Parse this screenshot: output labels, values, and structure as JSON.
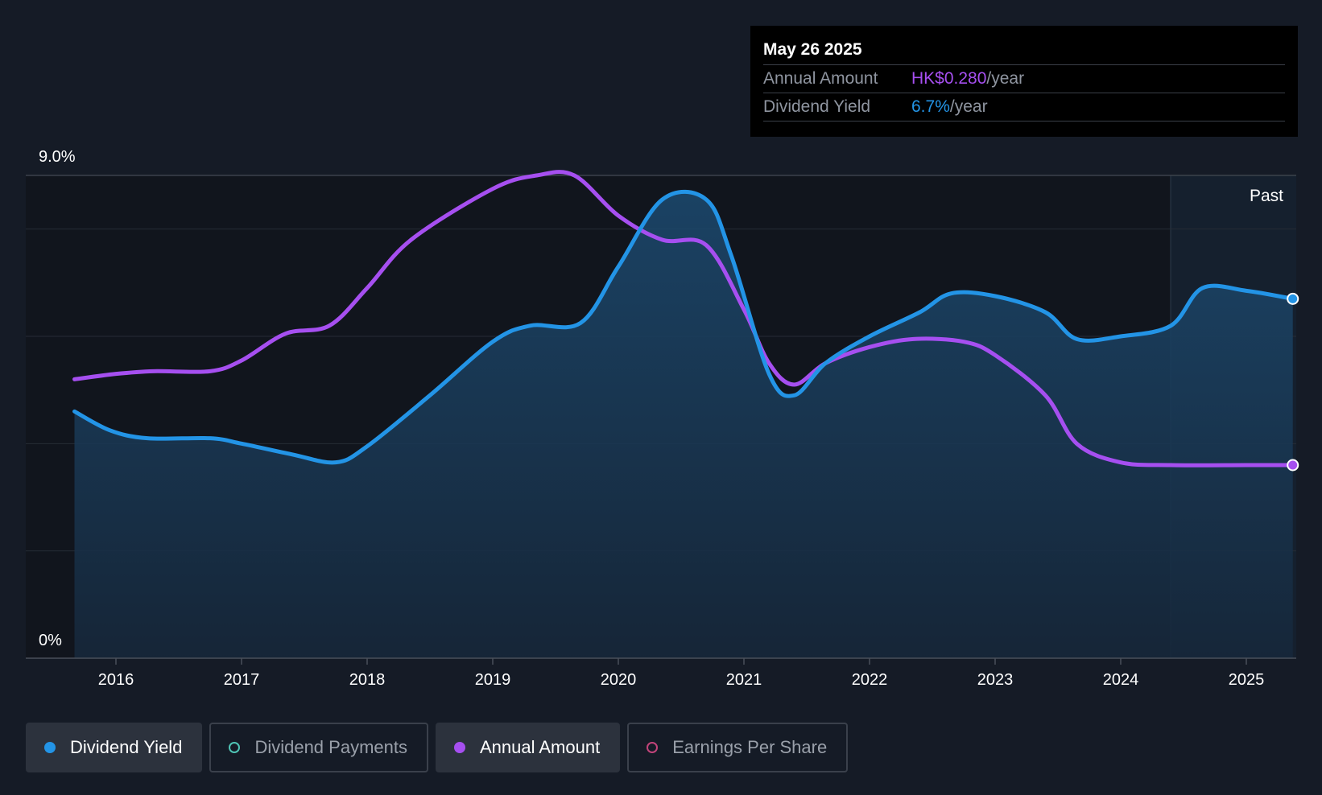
{
  "chart_data": {
    "type": "line",
    "x_ticks": [
      "2016",
      "2017",
      "2018",
      "2019",
      "2020",
      "2021",
      "2022",
      "2023",
      "2024",
      "2025"
    ],
    "y_tick_labels": {
      "top": "9.0%",
      "bottom": "0%"
    },
    "ylim": [
      0,
      9.0
    ],
    "forecast_label": "Past",
    "series": [
      {
        "name": "Dividend Yield",
        "color": "#2394e6",
        "area": true,
        "points": [
          [
            2015.67,
            4.6
          ],
          [
            2015.95,
            4.25
          ],
          [
            2016.25,
            4.1
          ],
          [
            2016.75,
            4.1
          ],
          [
            2017.0,
            4.0
          ],
          [
            2017.4,
            3.8
          ],
          [
            2017.75,
            3.65
          ],
          [
            2018.0,
            3.95
          ],
          [
            2018.5,
            4.9
          ],
          [
            2019.0,
            5.9
          ],
          [
            2019.3,
            6.2
          ],
          [
            2019.7,
            6.25
          ],
          [
            2020.0,
            7.3
          ],
          [
            2020.35,
            8.55
          ],
          [
            2020.7,
            8.55
          ],
          [
            2020.9,
            7.5
          ],
          [
            2021.2,
            5.3
          ],
          [
            2021.4,
            4.9
          ],
          [
            2021.65,
            5.5
          ],
          [
            2022.0,
            6.0
          ],
          [
            2022.4,
            6.45
          ],
          [
            2022.65,
            6.8
          ],
          [
            2023.0,
            6.75
          ],
          [
            2023.4,
            6.45
          ],
          [
            2023.65,
            5.95
          ],
          [
            2024.0,
            6.0
          ],
          [
            2024.4,
            6.2
          ],
          [
            2024.65,
            6.9
          ],
          [
            2025.0,
            6.85
          ],
          [
            2025.37,
            6.7
          ]
        ],
        "end_marker": true
      },
      {
        "name": "Annual Amount",
        "color": "#a64ff0",
        "area": false,
        "points": [
          [
            2015.67,
            5.2
          ],
          [
            2016.0,
            5.3
          ],
          [
            2016.3,
            5.35
          ],
          [
            2016.75,
            5.35
          ],
          [
            2017.0,
            5.55
          ],
          [
            2017.35,
            6.05
          ],
          [
            2017.7,
            6.2
          ],
          [
            2018.0,
            6.9
          ],
          [
            2018.35,
            7.8
          ],
          [
            2019.0,
            8.75
          ],
          [
            2019.35,
            9.0
          ],
          [
            2019.65,
            9.0
          ],
          [
            2020.0,
            8.25
          ],
          [
            2020.35,
            7.8
          ],
          [
            2020.7,
            7.7
          ],
          [
            2021.0,
            6.5
          ],
          [
            2021.2,
            5.5
          ],
          [
            2021.4,
            5.1
          ],
          [
            2021.65,
            5.5
          ],
          [
            2022.0,
            5.8
          ],
          [
            2022.35,
            5.95
          ],
          [
            2022.75,
            5.9
          ],
          [
            2023.0,
            5.65
          ],
          [
            2023.4,
            4.9
          ],
          [
            2023.65,
            4.0
          ],
          [
            2024.0,
            3.65
          ],
          [
            2024.4,
            3.6
          ],
          [
            2025.0,
            3.6
          ],
          [
            2025.37,
            3.6
          ]
        ],
        "end_marker": true
      }
    ]
  },
  "tooltip": {
    "date": "May 26 2025",
    "rows": [
      {
        "label": "Annual Amount",
        "value": "HK$0.280",
        "unit": "/year",
        "color": "#a64ff0"
      },
      {
        "label": "Dividend Yield",
        "value": "6.7%",
        "unit": "/year",
        "color": "#2394e6"
      }
    ]
  },
  "legend": [
    {
      "label": "Dividend Yield",
      "active": true,
      "dot": "#2394e6",
      "filled": true
    },
    {
      "label": "Dividend Payments",
      "active": false,
      "dot": "#4fc4b5",
      "filled": false
    },
    {
      "label": "Annual Amount",
      "active": true,
      "dot": "#a64ff0",
      "filled": true
    },
    {
      "label": "Earnings Per Share",
      "active": false,
      "dot": "#c2447a",
      "filled": false
    }
  ]
}
